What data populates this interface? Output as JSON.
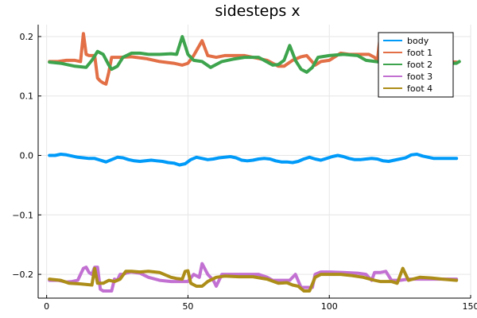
{
  "chart_data": {
    "type": "line",
    "title": "sidesteps x",
    "xlabel": "",
    "ylabel": "",
    "xlim": [
      -3,
      150
    ],
    "ylim": [
      -0.24,
      0.22
    ],
    "xticks": [
      0,
      50,
      100,
      150
    ],
    "yticks": [
      -0.2,
      -0.1,
      0.0,
      0.1,
      0.2
    ],
    "xtick_labels": [
      "0",
      "50",
      "100",
      "150"
    ],
    "ytick_labels": [
      "−0.2",
      "−0.1",
      "0.0",
      "0.1",
      "0.2"
    ],
    "grid": true,
    "legend_position": "top-right",
    "series": [
      {
        "name": "body",
        "color": "#009af9",
        "x": [
          1,
          3,
          5,
          7,
          9,
          11,
          13,
          15,
          17,
          19,
          21,
          23,
          25,
          27,
          29,
          31,
          33,
          35,
          37,
          39,
          41,
          43,
          45,
          47,
          49,
          51,
          53,
          55,
          57,
          59,
          61,
          63,
          65,
          67,
          69,
          71,
          73,
          75,
          77,
          79,
          81,
          83,
          85,
          87,
          89,
          91,
          93,
          95,
          97,
          99,
          101,
          103,
          105,
          107,
          109,
          111,
          113,
          115,
          117,
          119,
          121,
          123,
          125,
          127,
          129,
          131,
          133,
          135,
          137,
          139,
          141,
          143,
          145
        ],
        "y": [
          0.0,
          0.0,
          0.002,
          0.001,
          -0.001,
          -0.003,
          -0.004,
          -0.005,
          -0.005,
          -0.008,
          -0.011,
          -0.007,
          -0.003,
          -0.004,
          -0.007,
          -0.009,
          -0.01,
          -0.009,
          -0.008,
          -0.009,
          -0.01,
          -0.012,
          -0.013,
          -0.016,
          -0.014,
          -0.007,
          -0.003,
          -0.005,
          -0.007,
          -0.006,
          -0.004,
          -0.003,
          -0.002,
          -0.004,
          -0.008,
          -0.009,
          -0.008,
          -0.006,
          -0.005,
          -0.006,
          -0.009,
          -0.011,
          -0.011,
          -0.012,
          -0.01,
          -0.006,
          -0.003,
          -0.006,
          -0.008,
          -0.005,
          -0.002,
          0.0,
          -0.002,
          -0.005,
          -0.007,
          -0.007,
          -0.006,
          -0.005,
          -0.006,
          -0.009,
          -0.01,
          -0.008,
          -0.006,
          -0.004,
          0.001,
          0.002,
          -0.001,
          -0.003,
          -0.005,
          -0.005,
          -0.005,
          -0.005,
          -0.005
        ]
      },
      {
        "name": "foot 1",
        "color": "#e26f46",
        "x": [
          1,
          4,
          7,
          10,
          12,
          13,
          14,
          15,
          17,
          18,
          19,
          20,
          21,
          22,
          23,
          26,
          30,
          35,
          40,
          45,
          48,
          50,
          52,
          55,
          57,
          60,
          63,
          66,
          70,
          75,
          78,
          80,
          82,
          84,
          87,
          90,
          92,
          95,
          97,
          100,
          104,
          107,
          110,
          114,
          116,
          117,
          118,
          120,
          123,
          126,
          129,
          133,
          137,
          141,
          145
        ],
        "y": [
          0.158,
          0.158,
          0.16,
          0.16,
          0.158,
          0.205,
          0.17,
          0.168,
          0.168,
          0.13,
          0.125,
          0.122,
          0.12,
          0.14,
          0.165,
          0.165,
          0.166,
          0.163,
          0.158,
          0.155,
          0.152,
          0.155,
          0.168,
          0.193,
          0.168,
          0.165,
          0.168,
          0.168,
          0.168,
          0.163,
          0.16,
          0.155,
          0.15,
          0.15,
          0.16,
          0.166,
          0.168,
          0.152,
          0.158,
          0.16,
          0.172,
          0.17,
          0.17,
          0.17,
          0.165,
          0.16,
          0.2,
          0.17,
          0.165,
          0.162,
          0.16,
          0.16,
          0.16,
          0.158,
          0.157
        ]
      },
      {
        "name": "foot 2",
        "color": "#3da44d",
        "x": [
          1,
          5,
          10,
          14,
          16,
          18,
          20,
          22,
          23,
          25,
          27,
          30,
          33,
          36,
          40,
          44,
          46,
          48,
          50,
          52,
          55,
          58,
          62,
          66,
          70,
          75,
          80,
          82,
          84,
          86,
          88,
          90,
          92,
          94,
          96,
          100,
          105,
          110,
          113,
          118,
          122,
          126,
          130,
          133,
          137,
          141,
          143,
          145,
          146
        ],
        "y": [
          0.157,
          0.155,
          0.15,
          0.148,
          0.16,
          0.175,
          0.17,
          0.152,
          0.145,
          0.15,
          0.165,
          0.172,
          0.172,
          0.17,
          0.17,
          0.171,
          0.17,
          0.2,
          0.17,
          0.16,
          0.158,
          0.148,
          0.158,
          0.162,
          0.165,
          0.165,
          0.152,
          0.153,
          0.16,
          0.185,
          0.16,
          0.145,
          0.14,
          0.148,
          0.165,
          0.168,
          0.17,
          0.168,
          0.16,
          0.157,
          0.153,
          0.152,
          0.152,
          0.153,
          0.16,
          0.161,
          0.155,
          0.155,
          0.158
        ]
      },
      {
        "name": "foot 3",
        "color": "#c271d2",
        "x": [
          1,
          4,
          7,
          9,
          11,
          12,
          13,
          14,
          15,
          16,
          17,
          18,
          19,
          20,
          21,
          22,
          23,
          24,
          25,
          26,
          27,
          28,
          30,
          33,
          36,
          40,
          44,
          48,
          50,
          52,
          54,
          55,
          57,
          59,
          60,
          62,
          65,
          70,
          75,
          78,
          80,
          83,
          86,
          88,
          90,
          92,
          94,
          95,
          97,
          100,
          105,
          110,
          113,
          115,
          116,
          118,
          120,
          122,
          125,
          128,
          132,
          136,
          140,
          145
        ],
        "y": [
          -0.21,
          -0.21,
          -0.213,
          -0.212,
          -0.21,
          -0.2,
          -0.19,
          -0.188,
          -0.197,
          -0.2,
          -0.188,
          -0.188,
          -0.225,
          -0.228,
          -0.228,
          -0.228,
          -0.228,
          -0.208,
          -0.21,
          -0.2,
          -0.2,
          -0.198,
          -0.196,
          -0.198,
          -0.205,
          -0.21,
          -0.212,
          -0.212,
          -0.212,
          -0.2,
          -0.205,
          -0.182,
          -0.2,
          -0.21,
          -0.22,
          -0.2,
          -0.2,
          -0.2,
          -0.2,
          -0.205,
          -0.21,
          -0.21,
          -0.21,
          -0.2,
          -0.222,
          -0.222,
          -0.222,
          -0.2,
          -0.196,
          -0.196,
          -0.197,
          -0.198,
          -0.2,
          -0.21,
          -0.197,
          -0.197,
          -0.195,
          -0.21,
          -0.21,
          -0.208,
          -0.208,
          -0.208,
          -0.208,
          -0.208
        ]
      },
      {
        "name": "foot 4",
        "color": "#ac8d18",
        "x": [
          1,
          5,
          8,
          12,
          16,
          17,
          18,
          20,
          22,
          24,
          26,
          28,
          30,
          33,
          36,
          40,
          44,
          46,
          48,
          49,
          50,
          51,
          53,
          55,
          57,
          60,
          63,
          68,
          73,
          78,
          82,
          85,
          87,
          89,
          91,
          93,
          95,
          97,
          100,
          104,
          108,
          112,
          116,
          118,
          120,
          122,
          124,
          126,
          128,
          132,
          136,
          140,
          145
        ],
        "y": [
          -0.208,
          -0.21,
          -0.215,
          -0.216,
          -0.218,
          -0.19,
          -0.215,
          -0.215,
          -0.21,
          -0.212,
          -0.208,
          -0.195,
          -0.195,
          -0.196,
          -0.195,
          -0.197,
          -0.205,
          -0.207,
          -0.208,
          -0.195,
          -0.194,
          -0.215,
          -0.22,
          -0.22,
          -0.212,
          -0.205,
          -0.203,
          -0.204,
          -0.204,
          -0.208,
          -0.215,
          -0.214,
          -0.218,
          -0.22,
          -0.228,
          -0.228,
          -0.205,
          -0.2,
          -0.2,
          -0.2,
          -0.202,
          -0.205,
          -0.21,
          -0.212,
          -0.212,
          -0.212,
          -0.215,
          -0.19,
          -0.21,
          -0.205,
          -0.206,
          -0.208,
          -0.21
        ]
      }
    ]
  }
}
